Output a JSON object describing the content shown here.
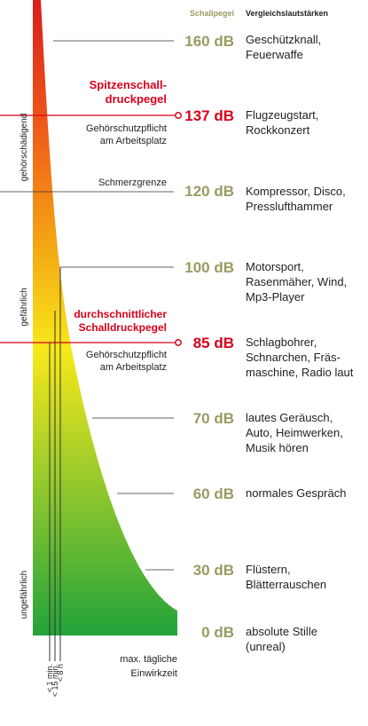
{
  "header": {
    "level_heading": "Schallpegel",
    "comparison_heading": "Vergleichslautstärken"
  },
  "zones": [
    "gehörschädigend",
    "gefährlich",
    "ungefährlich"
  ],
  "peak": {
    "title_line1": "Spitzenschall-",
    "title_line2": "druckpegel",
    "note_line1": "Gehörschutzpflicht",
    "note_line2": "am Arbeitsplatz"
  },
  "average": {
    "title_line1": "durchschnittlicher",
    "title_line2": "Schalldruckpegel",
    "note_line1": "Gehörschutzpflicht",
    "note_line2": "am Arbeitsplatz"
  },
  "pain_threshold": "Schmerzgrenze",
  "durations": [
    "< 1 min.",
    "< 15 min.",
    "< 8 h"
  ],
  "exposure_line1": "max. tägliche",
  "exposure_line2": "Einwirkzeit",
  "levels": [
    {
      "value": 160,
      "label": "160 dB",
      "highlight": false,
      "comparison": [
        "Geschützknall,",
        "Feuerwaffe"
      ]
    },
    {
      "value": 137,
      "label": "137 dB",
      "highlight": true,
      "comparison": [
        "Flugzeugstart,",
        "Rockkonzert"
      ]
    },
    {
      "value": 120,
      "label": "120 dB",
      "highlight": false,
      "comparison": [
        "Kompressor, Disco,",
        "Presslufthammer"
      ]
    },
    {
      "value": 100,
      "label": "100 dB",
      "highlight": false,
      "comparison": [
        "Motorsport,",
        "Rasenmäher, Wind,",
        "Mp3-Player"
      ]
    },
    {
      "value": 85,
      "label": "85 dB",
      "highlight": true,
      "comparison": [
        "Schlagbohrer,",
        "Schnarchen, Fräs-",
        "maschine, Radio laut"
      ]
    },
    {
      "value": 70,
      "label": "70 dB",
      "highlight": false,
      "comparison": [
        "lautes Geräusch,",
        "Auto, Heimwerken,",
        "Musik hören"
      ]
    },
    {
      "value": 60,
      "label": "60 dB",
      "highlight": false,
      "comparison": [
        "normales Gespräch"
      ]
    },
    {
      "value": 30,
      "label": "30 dB",
      "highlight": false,
      "comparison": [
        "Flüstern,",
        "Blätterrauschen"
      ]
    },
    {
      "value": 0,
      "label": "0 dB",
      "highlight": false,
      "comparison": [
        "absolute Stille",
        "(unreal)"
      ]
    }
  ],
  "colors": {
    "gradient_top": "#d91e1e",
    "gradient_orange": "#f39a13",
    "gradient_yellow": "#f7e81a",
    "gradient_bottom": "#22a33a",
    "highlight_red": "#d8001b",
    "level_olive": "#9a9a63",
    "lines": "#333333"
  }
}
